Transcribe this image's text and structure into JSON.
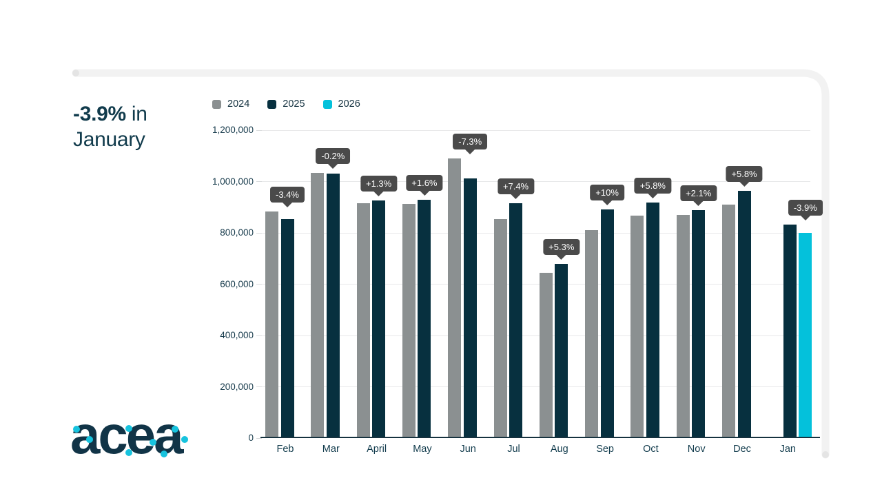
{
  "title": {
    "highlight": "-3.9%",
    "suffix": " in",
    "line2": "January"
  },
  "legend": [
    {
      "label": "2024",
      "color": "#8b9091"
    },
    {
      "label": "2025",
      "color": "#07303f"
    },
    {
      "label": "2026",
      "color": "#04c1db"
    }
  ],
  "chart_data": {
    "type": "bar",
    "title": "-3.9% in January",
    "categories": [
      "Feb",
      "Mar",
      "April",
      "May",
      "Jun",
      "Jul",
      "Aug",
      "Sep",
      "Oct",
      "Nov",
      "Dec",
      "Jan"
    ],
    "series": [
      {
        "name": "2024",
        "color": "#8b9091",
        "values": [
          884000,
          1033000,
          915000,
          913000,
          1090000,
          853000,
          644000,
          810000,
          868000,
          871000,
          911000,
          null
        ]
      },
      {
        "name": "2025",
        "color": "#07303f",
        "values": [
          854000,
          1031000,
          927000,
          928000,
          1011000,
          916000,
          678000,
          891000,
          918000,
          889000,
          964000,
          832000
        ]
      },
      {
        "name": "2026",
        "color": "#04c1db",
        "values": [
          null,
          null,
          null,
          null,
          null,
          null,
          null,
          null,
          null,
          null,
          null,
          800000
        ]
      }
    ],
    "change_labels": [
      "-3.4%",
      "-0.2%",
      "+1.3%",
      "+1.6%",
      "-7.3%",
      "+7.4%",
      "+5.3%",
      "+10%",
      "+5.8%",
      "+2.1%",
      "+5.8%",
      "-3.9%"
    ],
    "ylim": [
      0,
      1200000
    ],
    "yticks": [
      0,
      200000,
      400000,
      600000,
      800000,
      1000000,
      1200000
    ],
    "ytick_labels": [
      "0",
      "200,000",
      "400,000",
      "600,000",
      "800,000",
      "1,000,000",
      "1,200,000"
    ],
    "grid": true,
    "legend_position": "top",
    "xlabel": "",
    "ylabel": ""
  },
  "logo": {
    "text": "acea"
  }
}
